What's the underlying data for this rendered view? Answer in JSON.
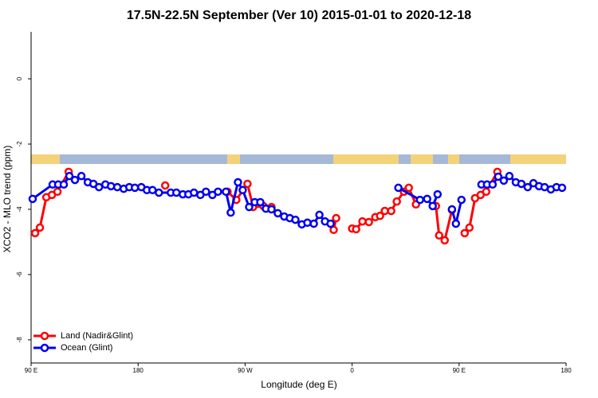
{
  "chart_data": {
    "type": "line",
    "title": "17.5N-22.5N September (Ver 10)   2015-01-01 to 2020-12-18",
    "x_label": "Longitude (deg E)",
    "y_label": "XCO2 - MLO trend (ppm)",
    "xlim": [
      90,
      540
    ],
    "ylim": [
      -8.71,
      1.44
    ],
    "xticks": [
      {
        "value": 90,
        "label": "90 E"
      },
      180,
      {
        "value": 270,
        "label": "90 W"
      },
      {
        "value": 360,
        "label": "0"
      },
      {
        "value": 450,
        "label": "90 E"
      },
      {
        "value": 540,
        "label": "180"
      }
    ],
    "yticks": [
      -8,
      -6,
      -4,
      -2,
      0
    ],
    "legend": "bottom-left",
    "series": [
      {
        "name": "Land (Nadir&Glint)",
        "color": "#ff0000",
        "x": [
          93.4,
          97.4,
          102.8,
          107.5,
          112.2,
          121.6,
          null,
          202.8,
          null,
          255.2,
          262.6,
          272.0,
          276.7,
          285.4,
          292.2,
          null,
          344.5,
          346.6,
          null,
          360,
          363.4,
          368.7,
          374.1,
          379.5,
          383.5,
          387.5,
          392.9,
          397.6,
          403.6,
          407.7,
          413.7,
          null,
          430.5,
          433.2,
          437.9,
          444.0,
          null,
          454.7,
          458.7,
          463.4,
          468.1,
          472.8,
          482.2
        ],
        "values": [
          -4.73,
          -4.56,
          -3.63,
          -3.56,
          -3.46,
          -2.85,
          null,
          -3.27,
          null,
          -3.46,
          -3.71,
          -3.22,
          -3.93,
          -3.9,
          -3.93,
          null,
          -4.63,
          -4.27,
          null,
          -4.59,
          -4.61,
          -4.37,
          -4.39,
          -4.24,
          -4.2,
          -4.05,
          -4.05,
          -3.76,
          -3.46,
          -3.34,
          -3.85,
          null,
          -3.9,
          -4.8,
          -4.95,
          -4.02,
          null,
          -4.73,
          -4.56,
          -3.66,
          -3.56,
          -3.46,
          -2.85
        ]
      },
      {
        "name": "Ocean (Glint)",
        "color": "#0000ee",
        "x": [
          91.3,
          108.1,
          112.8,
          117.5,
          122.2,
          126.9,
          132.3,
          137.7,
          142.4,
          147.1,
          152.5,
          157.2,
          162.5,
          167.9,
          172.6,
          177.3,
          182.7,
          187.4,
          192.1,
          197.5,
          207.5,
          212.2,
          217.6,
          222.3,
          227.0,
          232.4,
          237.1,
          242.5,
          247.2,
          253.9,
          257.9,
          264.0,
          268.0,
          273.4,
          278.1,
          282.8,
          287.5,
          292.2,
          297.5,
          302.9,
          307.6,
          312.3,
          317.7,
          322.4,
          327.8,
          332.5,
          337.2,
          341.9,
          null,
          398.9,
          417.1,
          423.1,
          427.8,
          431.9,
          null,
          444.0,
          447.3,
          452.0,
          null,
          468.8,
          473.5,
          478.2,
          482.9,
          487.6,
          492.3,
          497.7,
          502.4,
          507.7,
          512.5,
          517.2,
          521.9,
          527.2,
          531.9,
          536.6
        ],
        "values": [
          -3.68,
          -3.24,
          -3.24,
          -3.24,
          -2.98,
          -3.1,
          -2.98,
          -3.17,
          -3.22,
          -3.32,
          -3.24,
          -3.29,
          -3.32,
          -3.37,
          -3.32,
          -3.34,
          -3.32,
          -3.41,
          -3.41,
          -3.49,
          -3.49,
          -3.49,
          -3.54,
          -3.54,
          -3.49,
          -3.56,
          -3.46,
          -3.56,
          -3.46,
          -3.46,
          -4.1,
          -3.17,
          -3.41,
          -3.93,
          -3.78,
          -3.78,
          -3.98,
          -4.0,
          -4.12,
          -4.22,
          -4.27,
          -4.32,
          -4.46,
          -4.41,
          -4.44,
          -4.17,
          -4.37,
          -4.44,
          null,
          -3.34,
          -3.71,
          -3.68,
          -3.9,
          -3.54,
          null,
          -4.0,
          -4.44,
          -3.71,
          null,
          -3.24,
          -3.24,
          -3.24,
          -3.0,
          -3.12,
          -2.98,
          -3.17,
          -3.22,
          -3.32,
          -3.2,
          -3.29,
          -3.32,
          -3.39,
          -3.32,
          -3.34
        ]
      }
    ]
  }
}
